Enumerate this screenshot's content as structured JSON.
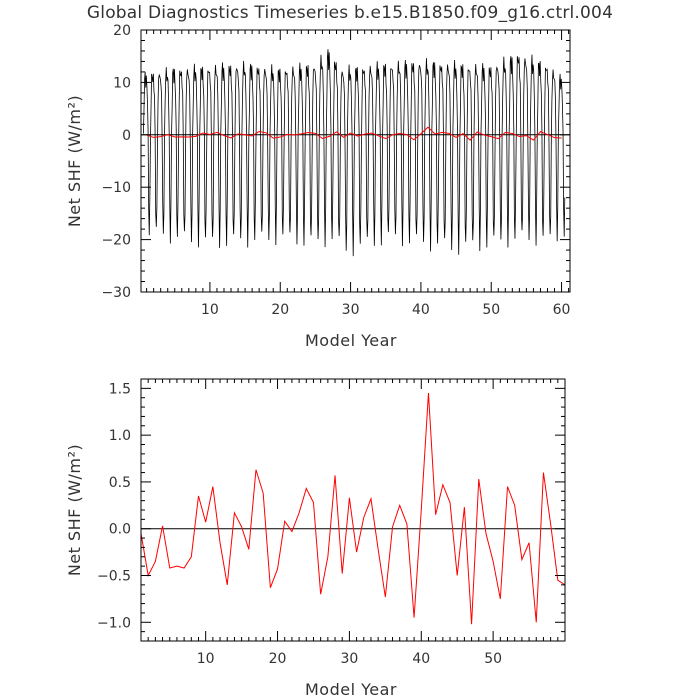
{
  "title": "Global Diagnostics Timeseries b.e15.B1850.f09_g16.ctrl.004",
  "colors": {
    "monthly": "#000000",
    "annual": "#ff0000",
    "zero_line": "#000000"
  },
  "chart_data": [
    {
      "type": "line",
      "xlabel": "Model Year",
      "ylabel": "Net SHF (W/m²)",
      "xlim": [
        0.2,
        61.2
      ],
      "ylim": [
        -30,
        20
      ],
      "xticks": [
        10,
        20,
        30,
        40,
        50,
        60
      ],
      "yticks": [
        -30,
        -20,
        -10,
        0,
        10,
        20
      ],
      "zero_line": true,
      "monthly_amplitude": {
        "years": [
          1,
          5,
          10,
          15,
          20,
          25,
          27,
          29,
          35,
          40,
          45,
          50,
          54,
          58,
          60
        ],
        "max": [
          12,
          13,
          13.5,
          14,
          13,
          14,
          16.5,
          13,
          14,
          14.5,
          14,
          13.5,
          16,
          14,
          11.5
        ],
        "min": [
          -19,
          -20,
          -21,
          -20.5,
          -20,
          -21,
          -20,
          -22.5,
          -20,
          -21,
          -22,
          -21,
          -20,
          -20.5,
          -19
        ]
      },
      "series": [
        {
          "name": "",
          "color": "#000000",
          "description_values": "monthly seasonal cycle, 12 values per year"
        },
        {
          "name": "",
          "color": "#ff0000",
          "x_source": "annual_x",
          "y_source": "annual_values"
        }
      ]
    },
    {
      "type": "line",
      "xlabel": "Model Year",
      "ylabel": "Net SHF (W/m²)",
      "xlim": [
        1,
        60
      ],
      "ylim": [
        -1.2,
        1.6
      ],
      "xticks": [
        10,
        20,
        30,
        40,
        50
      ],
      "yticks": [
        -1.0,
        -0.5,
        0.0,
        0.5,
        1.0,
        1.5
      ],
      "zero_line": true,
      "series": [
        {
          "name": "",
          "color": "#ff0000",
          "x_source": "annual_x",
          "y_source": "annual_values"
        }
      ]
    }
  ],
  "annual_x": [
    1,
    2,
    3,
    4,
    5,
    6,
    7,
    8,
    9,
    10,
    11,
    12,
    13,
    14,
    15,
    16,
    17,
    18,
    19,
    20,
    21,
    22,
    23,
    24,
    25,
    26,
    27,
    28,
    29,
    30,
    31,
    32,
    33,
    34,
    35,
    36,
    37,
    38,
    39,
    40,
    41,
    42,
    43,
    44,
    45,
    46,
    47,
    48,
    49,
    50,
    51,
    52,
    53,
    54,
    55,
    56,
    57,
    58,
    59,
    60
  ],
  "annual_values": [
    -0.05,
    -0.5,
    -0.35,
    0.03,
    -0.42,
    -0.4,
    -0.42,
    -0.3,
    0.35,
    0.07,
    0.45,
    -0.15,
    -0.6,
    0.17,
    0.02,
    -0.22,
    0.63,
    0.38,
    -0.63,
    -0.43,
    0.08,
    -0.03,
    0.17,
    0.43,
    0.28,
    -0.7,
    -0.3,
    0.57,
    -0.48,
    0.33,
    -0.25,
    0.12,
    0.32,
    -0.22,
    -0.73,
    0.02,
    0.25,
    0.05,
    -0.95,
    0.2,
    1.45,
    0.15,
    0.47,
    0.28,
    -0.5,
    0.23,
    -1.02,
    0.53,
    -0.05,
    -0.35,
    -0.75,
    0.45,
    0.25,
    -0.33,
    -0.15,
    -1.0,
    0.6,
    0.05,
    -0.55,
    -0.6
  ]
}
